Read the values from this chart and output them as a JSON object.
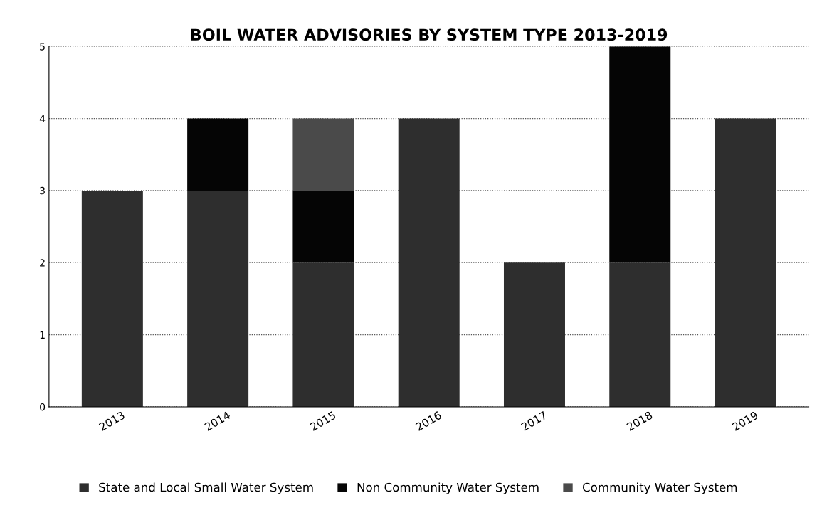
{
  "chart_data": {
    "type": "bar",
    "title": "BOIL WATER ADVISORIES BY SYSTEM TYPE 2013-2019",
    "categories": [
      "2013",
      "2014",
      "2015",
      "2016",
      "2017",
      "2018",
      "2019"
    ],
    "stacked": true,
    "series": [
      {
        "name": "State and Local Small Water System",
        "color": "#2e2e2e",
        "values": [
          3,
          3,
          2,
          4,
          2,
          2,
          4
        ]
      },
      {
        "name": "Non Community Water System",
        "color": "#050505",
        "values": [
          0,
          1,
          1,
          0,
          0,
          3,
          0
        ]
      },
      {
        "name": "Community Water System",
        "color": "#4a4a4a",
        "values": [
          0,
          0,
          1,
          0,
          0,
          0,
          0
        ]
      }
    ],
    "ylim": [
      0,
      5
    ],
    "yticks": [
      0,
      1,
      2,
      3,
      4,
      5
    ],
    "grid": "y",
    "legend": "bottom"
  }
}
